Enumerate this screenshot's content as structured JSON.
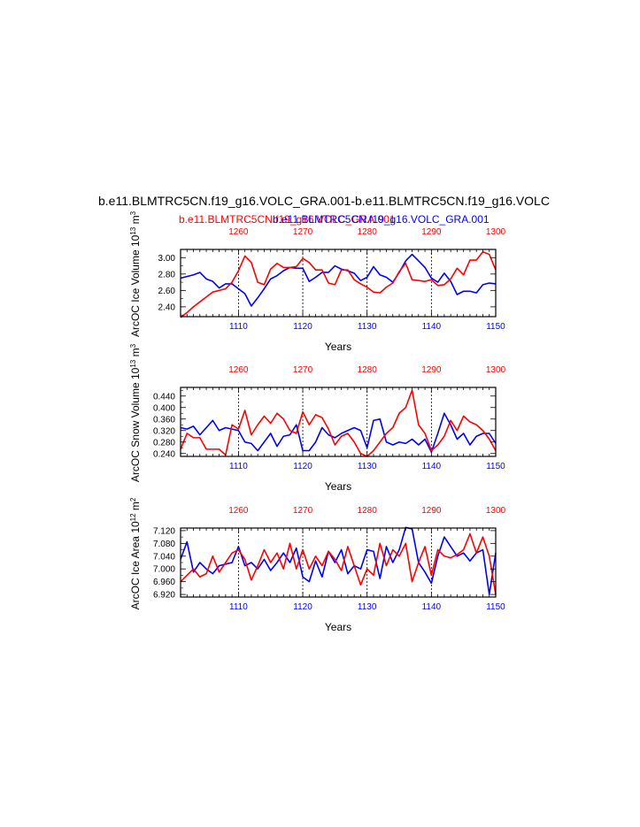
{
  "header": {
    "main_title": "b.e11.BLMTRC5CN.f19_g16.VOLC_GRA.001-b.e11.BLMTRC5CN.f19_g16.VOLC",
    "subtitle_red": "b.e11.BLMTRC5CN.f19_g16.VOLC_GRA.001",
    "subtitle_blue": "b.e11.BLMTRC5CN.f19_g16.VOLC_GRA.001"
  },
  "colors": {
    "red_series": "#ff0000",
    "blue_series": "#0000ff",
    "axis": "#000000",
    "grid": "#000000"
  },
  "chart_data": [
    {
      "type": "line",
      "ylabel_main": "ArcOC Ice Volume 10",
      "ylabel_exp": "13",
      "ylabel_unit": " m",
      "ylabel_unit_exp": "3",
      "xlabel": "Years",
      "xlim_bottom": [
        1101,
        1150
      ],
      "xlim_top": [
        1251,
        1300
      ],
      "ylim": [
        2.28,
        3.1
      ],
      "yticks": [
        "2.40",
        "2.60",
        "2.80",
        "3.00"
      ],
      "xticks_bottom": [
        "1110",
        "1120",
        "1130",
        "1140",
        "1150"
      ],
      "xticks_top": [
        "1260",
        "1270",
        "1280",
        "1290",
        "1300"
      ],
      "series": [
        {
          "color": "blue",
          "x": [
            1101,
            1102,
            1103,
            1104,
            1105,
            1106,
            1107,
            1108,
            1109,
            1110,
            1111,
            1112,
            1113,
            1114,
            1115,
            1116,
            1117,
            1118,
            1119,
            1120,
            1121,
            1122,
            1123,
            1124,
            1125,
            1126,
            1127,
            1128,
            1129,
            1130,
            1131,
            1132,
            1133,
            1134,
            1135,
            1136,
            1137,
            1138,
            1139,
            1140,
            1141,
            1142,
            1143,
            1144,
            1145,
            1146,
            1147,
            1148,
            1149,
            1150
          ],
          "values": [
            2.75,
            2.77,
            2.79,
            2.82,
            2.74,
            2.71,
            2.63,
            2.68,
            2.68,
            2.62,
            2.56,
            2.41,
            2.51,
            2.62,
            2.74,
            2.78,
            2.84,
            2.88,
            2.87,
            2.87,
            2.71,
            2.76,
            2.82,
            2.82,
            2.9,
            2.86,
            2.84,
            2.81,
            2.72,
            2.76,
            2.89,
            2.79,
            2.76,
            2.7,
            2.82,
            2.96,
            3.04,
            2.96,
            2.88,
            2.75,
            2.7,
            2.81,
            2.71,
            2.55,
            2.59,
            2.59,
            2.57,
            2.67,
            2.69,
            2.68
          ]
        },
        {
          "color": "red",
          "x": [
            1101,
            1102,
            1103,
            1104,
            1105,
            1106,
            1107,
            1108,
            1109,
            1110,
            1111,
            1112,
            1113,
            1114,
            1115,
            1116,
            1117,
            1118,
            1119,
            1120,
            1121,
            1122,
            1123,
            1124,
            1125,
            1126,
            1127,
            1128,
            1129,
            1130,
            1131,
            1132,
            1133,
            1134,
            1135,
            1136,
            1137,
            1138,
            1139,
            1140,
            1141,
            1142,
            1143,
            1144,
            1145,
            1146,
            1147,
            1148,
            1149,
            1150
          ],
          "values": [
            2.27,
            2.33,
            2.4,
            2.46,
            2.52,
            2.58,
            2.6,
            2.62,
            2.7,
            2.84,
            3.02,
            2.94,
            2.7,
            2.67,
            2.86,
            2.93,
            2.88,
            2.88,
            2.89,
            2.99,
            2.94,
            2.85,
            2.85,
            2.69,
            2.67,
            2.85,
            2.85,
            2.73,
            2.68,
            2.64,
            2.58,
            2.57,
            2.64,
            2.69,
            2.83,
            2.93,
            2.73,
            2.72,
            2.71,
            2.73,
            2.66,
            2.67,
            2.74,
            2.87,
            2.79,
            2.97,
            2.97,
            3.07,
            3.04,
            2.85
          ]
        }
      ]
    },
    {
      "type": "line",
      "ylabel_main": "ArcOC Snow Volume 10",
      "ylabel_exp": "13",
      "ylabel_unit": " m",
      "ylabel_unit_exp": "3",
      "xlabel": "Years",
      "xlim_bottom": [
        1101,
        1150
      ],
      "xlim_top": [
        1251,
        1300
      ],
      "ylim": [
        0.23,
        0.47
      ],
      "yticks": [
        "0.240",
        "0.280",
        "0.320",
        "0.360",
        "0.400",
        "0.440"
      ],
      "xticks_bottom": [
        "1110",
        "1120",
        "1130",
        "1140",
        "1150"
      ],
      "xticks_top": [
        "1260",
        "1270",
        "1280",
        "1290",
        "1300"
      ],
      "series": [
        {
          "color": "blue",
          "x": [
            1101,
            1102,
            1103,
            1104,
            1105,
            1106,
            1107,
            1108,
            1109,
            1110,
            1111,
            1112,
            1113,
            1114,
            1115,
            1116,
            1117,
            1118,
            1119,
            1120,
            1121,
            1122,
            1123,
            1124,
            1125,
            1126,
            1127,
            1128,
            1129,
            1130,
            1131,
            1132,
            1133,
            1134,
            1135,
            1136,
            1137,
            1138,
            1139,
            1140,
            1141,
            1142,
            1143,
            1144,
            1145,
            1146,
            1147,
            1148,
            1149,
            1150
          ],
          "values": [
            0.33,
            0.325,
            0.335,
            0.305,
            0.33,
            0.355,
            0.32,
            0.33,
            0.325,
            0.32,
            0.28,
            0.275,
            0.25,
            0.28,
            0.31,
            0.265,
            0.3,
            0.305,
            0.34,
            0.25,
            0.25,
            0.28,
            0.33,
            0.305,
            0.295,
            0.31,
            0.32,
            0.33,
            0.32,
            0.26,
            0.355,
            0.36,
            0.28,
            0.27,
            0.28,
            0.275,
            0.29,
            0.27,
            0.29,
            0.245,
            0.31,
            0.38,
            0.34,
            0.29,
            0.31,
            0.27,
            0.3,
            0.31,
            0.31,
            0.275
          ]
        },
        {
          "color": "red",
          "x": [
            1101,
            1102,
            1103,
            1104,
            1105,
            1106,
            1107,
            1108,
            1109,
            1110,
            1111,
            1112,
            1113,
            1114,
            1115,
            1116,
            1117,
            1118,
            1119,
            1120,
            1121,
            1122,
            1123,
            1124,
            1125,
            1126,
            1127,
            1128,
            1129,
            1130,
            1131,
            1132,
            1133,
            1134,
            1135,
            1136,
            1137,
            1138,
            1139,
            1140,
            1141,
            1142,
            1143,
            1144,
            1145,
            1146,
            1147,
            1148,
            1149,
            1150
          ],
          "values": [
            0.255,
            0.31,
            0.295,
            0.295,
            0.255,
            0.255,
            0.255,
            0.235,
            0.34,
            0.325,
            0.39,
            0.305,
            0.34,
            0.37,
            0.345,
            0.38,
            0.36,
            0.32,
            0.31,
            0.385,
            0.34,
            0.375,
            0.365,
            0.325,
            0.27,
            0.3,
            0.31,
            0.28,
            0.24,
            0.23,
            0.25,
            0.28,
            0.31,
            0.33,
            0.38,
            0.4,
            0.46,
            0.34,
            0.31,
            0.25,
            0.27,
            0.3,
            0.355,
            0.32,
            0.37,
            0.35,
            0.34,
            0.32,
            0.29,
            0.25
          ]
        }
      ]
    },
    {
      "type": "line",
      "ylabel_main": "ArcOC Ice Area 10",
      "ylabel_exp": "12",
      "ylabel_unit": " m",
      "ylabel_unit_exp": "2",
      "xlabel": "Years",
      "xlim_bottom": [
        1101,
        1150
      ],
      "xlim_top": [
        1251,
        1300
      ],
      "ylim": [
        6.912,
        7.128
      ],
      "yticks": [
        "6.920",
        "6.960",
        "7.000",
        "7.040",
        "7.080",
        "7.120"
      ],
      "xticks_bottom": [
        "1110",
        "1120",
        "1130",
        "1140",
        "1150"
      ],
      "xticks_top": [
        "1260",
        "1270",
        "1280",
        "1290",
        "1300"
      ],
      "series": [
        {
          "color": "blue",
          "x": [
            1101,
            1102,
            1103,
            1104,
            1105,
            1106,
            1107,
            1108,
            1109,
            1110,
            1111,
            1112,
            1113,
            1114,
            1115,
            1116,
            1117,
            1118,
            1119,
            1120,
            1121,
            1122,
            1123,
            1124,
            1125,
            1126,
            1127,
            1128,
            1129,
            1130,
            1131,
            1132,
            1133,
            1134,
            1135,
            1136,
            1137,
            1138,
            1139,
            1140,
            1141,
            1142,
            1143,
            1144,
            1145,
            1146,
            1147,
            1148,
            1149,
            1150
          ],
          "values": [
            7.03,
            7.085,
            6.99,
            7.02,
            7.0,
            6.985,
            7.01,
            7.015,
            7.02,
            7.07,
            7.01,
            7.02,
            7.0,
            7.03,
            6.995,
            7.02,
            7.05,
            7.02,
            7.065,
            6.975,
            6.96,
            7.025,
            6.975,
            7.055,
            7.02,
            7.06,
            6.985,
            7.01,
            7.0,
            7.06,
            7.055,
            6.97,
            7.07,
            7.02,
            7.06,
            7.13,
            7.125,
            7.02,
            6.99,
            6.955,
            7.04,
            7.1,
            7.07,
            7.04,
            7.05,
            7.025,
            7.05,
            7.06,
            6.92,
            7.05
          ]
        },
        {
          "color": "red",
          "x": [
            1101,
            1102,
            1103,
            1104,
            1105,
            1106,
            1107,
            1108,
            1109,
            1110,
            1111,
            1112,
            1113,
            1114,
            1115,
            1116,
            1117,
            1118,
            1119,
            1120,
            1121,
            1122,
            1123,
            1124,
            1125,
            1126,
            1127,
            1128,
            1129,
            1130,
            1131,
            1132,
            1133,
            1134,
            1135,
            1136,
            1137,
            1138,
            1139,
            1140,
            1141,
            1142,
            1143,
            1144,
            1145,
            1146,
            1147,
            1148,
            1149,
            1150
          ],
          "values": [
            6.96,
            6.98,
            7.0,
            6.975,
            6.985,
            7.04,
            6.99,
            7.02,
            7.05,
            7.06,
            7.03,
            6.965,
            7.01,
            7.06,
            7.02,
            7.05,
            7.0,
            7.08,
            7.0,
            7.06,
            7.0,
            7.04,
            7.01,
            7.055,
            7.03,
            6.995,
            7.07,
            7.01,
            6.95,
            7.0,
            6.98,
            7.08,
            7.01,
            7.06,
            7.04,
            7.08,
            6.96,
            7.02,
            7.07,
            6.98,
            7.06,
            7.04,
            7.035,
            7.045,
            7.06,
            7.11,
            7.05,
            7.1,
            7.04,
            6.92
          ]
        }
      ]
    }
  ]
}
